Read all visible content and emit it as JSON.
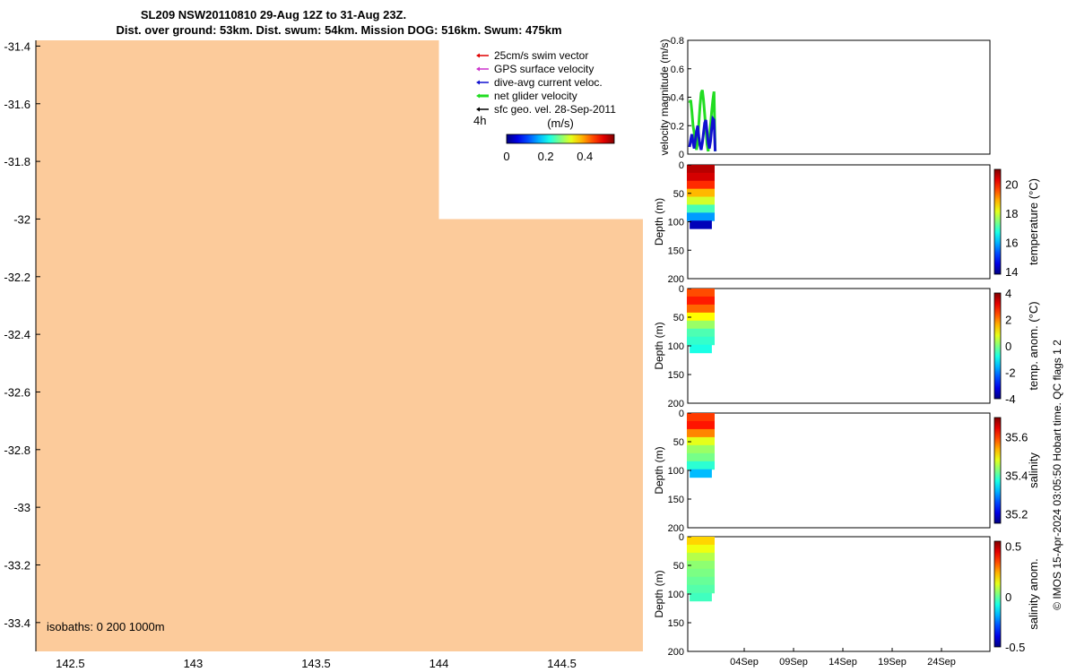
{
  "title_line1": "SL209 NSW20110810 29-Aug 12Z to 31-Aug 23Z.",
  "title_line2": "Dist. over ground: 53km. Dist. swum: 54km. Mission DOG: 516km. Swum: 475km",
  "map": {
    "lat_ticks": [
      "-31.4",
      "-31.6",
      "-31.8",
      "-32",
      "-32.2",
      "-32.4",
      "-32.6",
      "-32.8",
      "-33",
      "-33.2",
      "-33.4"
    ],
    "lon_ticks": [
      "142.5",
      "143",
      "143.5",
      "144",
      "144.5"
    ],
    "lat_range": [
      -33.5,
      -31.38
    ],
    "lon_range": [
      142.36,
      144.83
    ],
    "isobaths_label": "isobaths: 0   200  1000m",
    "land_color": "#fccb9b",
    "legend": [
      {
        "label": "25cm/s swim vector",
        "color": "#e00000"
      },
      {
        "label": "GPS surface velocity",
        "color": "#cc33cc"
      },
      {
        "label": "dive-avg current veloc.",
        "color": "#1010d0"
      },
      {
        "label": "net glider velocity",
        "color": "#22dd22"
      },
      {
        "label": "sfc geo. vel. 28-Sep-2011",
        "color": "#000000"
      }
    ],
    "time_label": "4h",
    "colorbar_units": "(m/s)",
    "colorbar_ticks": [
      "0",
      "0.2",
      "0.4"
    ]
  },
  "chart_data": [
    {
      "type": "line",
      "title": "",
      "ylabel": "velocity magnitude (m/s)",
      "ylim": [
        0,
        0.8
      ],
      "yticks": [
        "0",
        "0.2",
        "0.4",
        "0.6",
        "0.8"
      ],
      "series": [
        {
          "name": "net glider velocity",
          "color": "#22dd22",
          "x": [
            0,
            0.1,
            0.2,
            0.3,
            0.4,
            0.5,
            0.6,
            0.7,
            0.8,
            0.9,
            1.0,
            1.1,
            1.2,
            1.3,
            1.4,
            1.5,
            1.6,
            1.7,
            1.8,
            1.9,
            2.0,
            2.1,
            2.2
          ],
          "values": [
            0.36,
            0.38,
            0.3,
            0.2,
            0.15,
            0.08,
            0.03,
            0.1,
            0.22,
            0.34,
            0.43,
            0.45,
            0.38,
            0.28,
            0.18,
            0.07,
            0.02,
            0.1,
            0.2,
            0.3,
            0.38,
            0.44,
            0.02
          ]
        },
        {
          "name": "dive-avg current veloc.",
          "color": "#1010d0",
          "x": [
            0,
            0.1,
            0.2,
            0.3,
            0.4,
            0.5,
            0.6,
            0.7,
            0.8,
            0.9,
            1.0,
            1.1,
            1.2,
            1.3,
            1.4,
            1.5,
            1.6,
            1.7,
            1.8,
            1.9,
            2.0,
            2.1,
            2.2
          ],
          "values": [
            0.05,
            0.1,
            0.14,
            0.08,
            0.04,
            0.1,
            0.16,
            0.2,
            0.12,
            0.06,
            0.03,
            0.08,
            0.15,
            0.22,
            0.24,
            0.16,
            0.08,
            0.04,
            0.09,
            0.18,
            0.25,
            0.24,
            0.02
          ]
        }
      ],
      "xticks": [
        "04Sep",
        "09Sep",
        "14Sep",
        "19Sep",
        "24Sep"
      ]
    },
    {
      "type": "heatmap",
      "ylabel": "Depth (m)",
      "yticks": [
        "0",
        "50",
        "100",
        "150",
        "200"
      ],
      "ylim": [
        0,
        200
      ],
      "colorbar_label": "temperature (°C)",
      "colorbar_ticks": [
        "14",
        "16",
        "18",
        "20"
      ],
      "colorbar_range": [
        13.8,
        21
      ],
      "profile_depth_max": 112,
      "profile_values": [
        20.6,
        20.4,
        19.8,
        18.8,
        18.0,
        17.0,
        15.8,
        14.2
      ]
    },
    {
      "type": "heatmap",
      "ylabel": "Depth (m)",
      "yticks": [
        "0",
        "50",
        "100",
        "150",
        "200"
      ],
      "ylim": [
        0,
        200
      ],
      "colorbar_label": "temp. anom. (°C)",
      "colorbar_ticks": [
        "-4",
        "-2",
        "0",
        "2",
        "4"
      ],
      "colorbar_range": [
        -4,
        4
      ],
      "profile_depth_max": 112,
      "profile_values": [
        2.4,
        2.8,
        2.2,
        1.0,
        0.2,
        -0.4,
        -0.6,
        -0.8
      ]
    },
    {
      "type": "heatmap",
      "ylabel": "Depth (m)",
      "yticks": [
        "0",
        "50",
        "100",
        "150",
        "200"
      ],
      "ylim": [
        0,
        200
      ],
      "colorbar_label": "salinity",
      "colorbar_ticks": [
        "35.2",
        "35.4",
        "35.6"
      ],
      "colorbar_range": [
        35.15,
        35.7
      ],
      "profile_depth_max": 112,
      "profile_values": [
        35.6,
        35.62,
        35.56,
        35.48,
        35.44,
        35.42,
        35.38,
        35.32
      ]
    },
    {
      "type": "heatmap",
      "ylabel": "Depth (m)",
      "yticks": [
        "0",
        "50",
        "100",
        "150",
        "200"
      ],
      "ylim": [
        0,
        200
      ],
      "colorbar_label": "salinity anom.",
      "colorbar_ticks": [
        "-0.5",
        "0",
        "0.5"
      ],
      "colorbar_range": [
        -0.5,
        0.55
      ],
      "profile_depth_max": 112,
      "profile_values": [
        0.2,
        0.14,
        0.08,
        0.04,
        0.02,
        0.0,
        -0.02,
        -0.04
      ]
    }
  ],
  "credit": "© IMOS 15-Apr-2024 03:05:50 Hobart time. QC flags 1  2"
}
